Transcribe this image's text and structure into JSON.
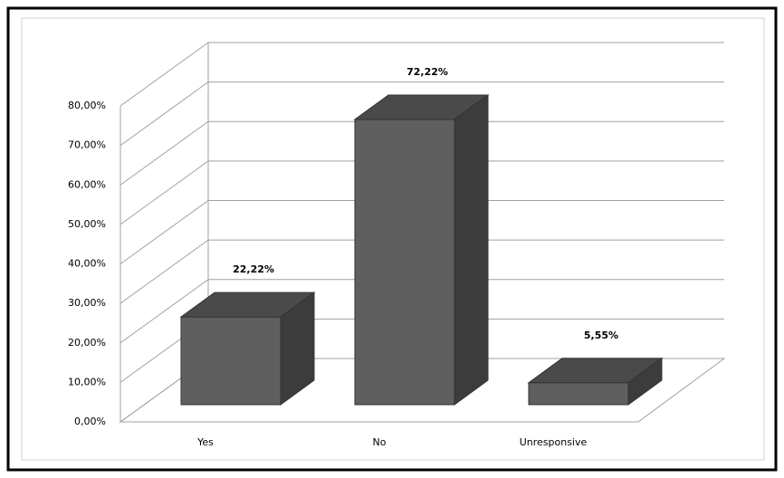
{
  "chart_data": {
    "type": "bar3d",
    "categories": [
      "Yes",
      "No",
      "Unresponsive"
    ],
    "values": [
      22.22,
      72.22,
      5.55
    ],
    "value_labels": [
      "22,22%",
      "72,22%",
      "5,55%"
    ],
    "color": "#5f5f5f",
    "ylim": [
      0,
      80
    ],
    "yticks": [
      {
        "value": 0,
        "label": "0,00%"
      },
      {
        "value": 10,
        "label": "10,00%"
      },
      {
        "value": 20,
        "label": "20,00%"
      },
      {
        "value": 30,
        "label": "30,00%"
      },
      {
        "value": 40,
        "label": "40,00%"
      },
      {
        "value": 50,
        "label": "50,00%"
      },
      {
        "value": 60,
        "label": "60,00%"
      },
      {
        "value": 70,
        "label": "70,00%"
      },
      {
        "value": 80,
        "label": "80,00%"
      }
    ],
    "grid": true
  }
}
